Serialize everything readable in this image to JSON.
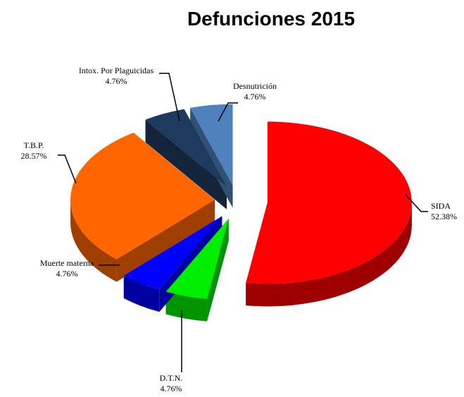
{
  "chart_data": {
    "type": "pie",
    "title": "Defunciones 2015",
    "categories": [
      "SIDA",
      "D.T.N.",
      "Muerte materna",
      "T.B.P.",
      "Intox. Por Plaguicidas",
      "Desnutrición"
    ],
    "values": [
      52.38,
      4.76,
      4.76,
      28.57,
      4.76,
      4.76
    ],
    "value_labels": [
      "52.38%",
      "4.76%",
      "4.76%",
      "28.57%",
      "4.76%",
      "4.76%"
    ],
    "colors": [
      "#ff0000",
      "#00ee00",
      "#0000ff",
      "#ff6600",
      "#1f3a5f",
      "#4f81bd"
    ]
  }
}
